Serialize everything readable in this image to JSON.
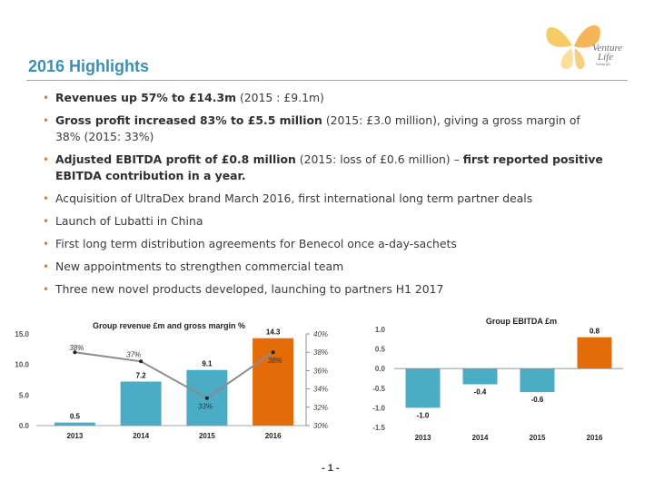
{
  "title": "2016 Highlights",
  "logo": {
    "line1": "Venture",
    "line2": "Life",
    "line3": "Group plc"
  },
  "bullets": [
    {
      "bold": "Revenues up 57% to £14.3m",
      "text": " (2015 : £9.1m)",
      "bold2": "",
      "text2": ""
    },
    {
      "bold": "Gross profit increased 83% to £5.5 million",
      "text": " (2015: £3.0 million), giving a gross margin of 38% (2015: 33%)",
      "bold2": "",
      "text2": ""
    },
    {
      "bold": "Adjusted EBITDA profit of £0.8 million",
      "text": " (2015: loss of £0.6 million) – ",
      "bold2": "first reported positive EBITDA contribution in a year.",
      "text2": ""
    },
    {
      "bold": "",
      "text": "Acquisition of UltraDex brand March 2016, first international long term partner deals",
      "bold2": "",
      "text2": ""
    },
    {
      "bold": "",
      "text": "Launch of Lubatti in China",
      "bold2": "",
      "text2": ""
    },
    {
      "bold": "",
      "text": "First long term distribution agreements for Benecol once a-day-sachets",
      "bold2": "",
      "text2": ""
    },
    {
      "bold": "",
      "text": "New appointments to strengthen commercial team",
      "bold2": "",
      "text2": ""
    },
    {
      "bold": "",
      "text": "Three new novel products developed, launching to partners H1 2017",
      "bold2": "",
      "text2": ""
    }
  ],
  "page_number": "- 1 -",
  "colors": {
    "title": "#3a8fb5",
    "bar": "#4bacc6",
    "highlight": "#e36c09",
    "line": "#8c8c8c",
    "bullet": "#e87722"
  },
  "chart_data": [
    {
      "type": "bar",
      "title": "Group revenue £m and gross margin %",
      "categories": [
        "2013",
        "2014",
        "2015",
        "2016"
      ],
      "series": [
        {
          "values": [
            0.5,
            7.2,
            9.1,
            14.3
          ],
          "axis": "left",
          "value_labels": [
            "0.5",
            "7.2",
            "9.1",
            "14.3"
          ]
        },
        {
          "type": "line",
          "values": [
            38,
            37,
            33,
            38
          ],
          "axis": "right",
          "value_labels": [
            "38%",
            "37%",
            "33%",
            "38%"
          ]
        }
      ],
      "highlight_category": "2016",
      "ylim": [
        0,
        15
      ],
      "y_ticks": [
        "0.0",
        "5.0",
        "10.0",
        "15.0"
      ],
      "y2lim": [
        30,
        40
      ],
      "y2_ticks": [
        "30%",
        "32%",
        "34%",
        "36%",
        "38%",
        "40%"
      ],
      "grid": false,
      "legend": "none"
    },
    {
      "type": "bar",
      "title": "Group EBITDA £m",
      "categories": [
        "2013",
        "2014",
        "2015",
        "2016"
      ],
      "series": [
        {
          "values": [
            -1.0,
            -0.4,
            -0.6,
            0.8
          ],
          "value_labels": [
            "-1.0",
            "-0.4",
            "-0.6",
            "0.8"
          ]
        }
      ],
      "highlight_category": "2016",
      "ylim": [
        -1.5,
        1.0
      ],
      "y_ticks": [
        "-1.5",
        "-1.0",
        "-0.5",
        "0.0",
        "0.5",
        "1.0"
      ],
      "grid": false,
      "legend": "none"
    }
  ]
}
